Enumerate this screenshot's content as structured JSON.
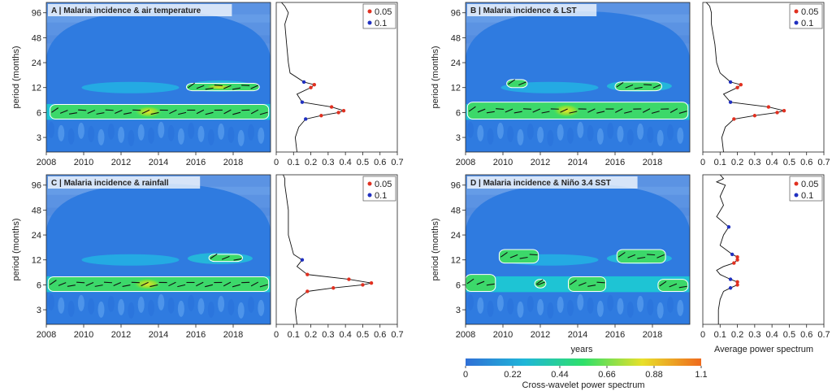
{
  "figure": {
    "colorbar": {
      "label": "Cross-wavelet power spectrum",
      "ticks": [
        "0",
        "0.22",
        "0.44",
        "0.66",
        "0.88",
        "1.1"
      ],
      "colors": [
        "#2f6fd6",
        "#1fb6d8",
        "#2ee06a",
        "#e8e02a",
        "#ef6a1e"
      ]
    },
    "bottom_labels": {
      "years": "years",
      "avg": "Average power spectrum"
    }
  },
  "chart_data": [
    {
      "type": "heatmap",
      "panel": "A",
      "title": "A | Malaria incidence & air temperature",
      "ylabel": "period (months)",
      "xticks": [
        "2008",
        "2010",
        "2012",
        "2014",
        "2016",
        "2018"
      ],
      "yticks": [
        "3",
        "6",
        "12",
        "24",
        "48",
        "96"
      ],
      "xlim": [
        2008,
        2020
      ],
      "ylim": [
        2,
        128
      ],
      "significant_regions": [
        {
          "x": [
            2008.2,
            2019.9
          ],
          "period": [
            5,
            7.5
          ]
        },
        {
          "x": [
            2015.5,
            2019.4
          ],
          "period": [
            11,
            13.5
          ]
        }
      ],
      "avg_power": {
        "xticks": [
          "0",
          "0.1",
          "0.2",
          "0.3",
          "0.4",
          "0.5",
          "0.6",
          "0.7"
        ],
        "xlim": [
          0,
          0.7
        ],
        "curve": [
          [
            2,
            0.12
          ],
          [
            3,
            0.11
          ],
          [
            4,
            0.13
          ],
          [
            5,
            0.17
          ],
          [
            5.5,
            0.26
          ],
          [
            6,
            0.36
          ],
          [
            6.3,
            0.39
          ],
          [
            7,
            0.32
          ],
          [
            8,
            0.15
          ],
          [
            10,
            0.12
          ],
          [
            12,
            0.2
          ],
          [
            13,
            0.22
          ],
          [
            14,
            0.16
          ],
          [
            18,
            0.08
          ],
          [
            24,
            0.07
          ],
          [
            40,
            0.06
          ],
          [
            70,
            0.05
          ],
          [
            96,
            0.07
          ],
          [
            115,
            0.05
          ],
          [
            128,
            0.03
          ]
        ],
        "legend": [
          "0.05",
          "0.1"
        ]
      }
    },
    {
      "type": "heatmap",
      "panel": "B",
      "title": "B | Malaria incidence & LST",
      "ylabel": "period (months)",
      "xticks": [
        "2008",
        "2010",
        "2012",
        "2014",
        "2016",
        "2018"
      ],
      "yticks": [
        "3",
        "6",
        "12",
        "24",
        "48",
        "96"
      ],
      "xlim": [
        2008,
        2020
      ],
      "ylim": [
        2,
        128
      ],
      "significant_regions": [
        {
          "x": [
            2008.1,
            2019.9
          ],
          "period": [
            5,
            8
          ]
        },
        {
          "x": [
            2010.2,
            2011.3
          ],
          "period": [
            12,
            15
          ]
        },
        {
          "x": [
            2016.0,
            2018.5
          ],
          "period": [
            11,
            14
          ]
        }
      ],
      "avg_power": {
        "xticks": [
          "0",
          "0.1",
          "0.2",
          "0.3",
          "0.4",
          "0.5",
          "0.6",
          "0.7"
        ],
        "xlim": [
          0,
          0.7
        ],
        "curve": [
          [
            2,
            0.12
          ],
          [
            3,
            0.11
          ],
          [
            4,
            0.13
          ],
          [
            5,
            0.18
          ],
          [
            5.5,
            0.3
          ],
          [
            6,
            0.43
          ],
          [
            6.3,
            0.47
          ],
          [
            7,
            0.38
          ],
          [
            8,
            0.16
          ],
          [
            10,
            0.12
          ],
          [
            12,
            0.2
          ],
          [
            13,
            0.22
          ],
          [
            14,
            0.16
          ],
          [
            18,
            0.1
          ],
          [
            24,
            0.08
          ],
          [
            40,
            0.07
          ],
          [
            70,
            0.05
          ],
          [
            96,
            0.05
          ],
          [
            115,
            0.04
          ],
          [
            128,
            0.02
          ]
        ],
        "legend": [
          "0.05",
          "0.1"
        ]
      }
    },
    {
      "type": "heatmap",
      "panel": "C",
      "title": "C | Malaria incidence & rainfall",
      "ylabel": "period (months)",
      "xticks": [
        "2008",
        "2010",
        "2012",
        "2014",
        "2016",
        "2018"
      ],
      "yticks": [
        "3",
        "6",
        "12",
        "24",
        "48",
        "96"
      ],
      "xlim": [
        2008,
        2020
      ],
      "ylim": [
        2,
        128
      ],
      "significant_regions": [
        {
          "x": [
            2008.1,
            2019.9
          ],
          "period": [
            5,
            7.5
          ]
        },
        {
          "x": [
            2016.7,
            2018.5
          ],
          "period": [
            11.5,
            14
          ]
        }
      ],
      "avg_power": {
        "xticks": [
          "0",
          "0.1",
          "0.2",
          "0.3",
          "0.4",
          "0.5",
          "0.6",
          "0.7"
        ],
        "xlim": [
          0,
          0.7
        ],
        "curve": [
          [
            2,
            0.12
          ],
          [
            3,
            0.11
          ],
          [
            4,
            0.12
          ],
          [
            5,
            0.18
          ],
          [
            5.5,
            0.33
          ],
          [
            6,
            0.5
          ],
          [
            6.3,
            0.55
          ],
          [
            7,
            0.42
          ],
          [
            8,
            0.18
          ],
          [
            10,
            0.12
          ],
          [
            12,
            0.15
          ],
          [
            14,
            0.1
          ],
          [
            24,
            0.07
          ],
          [
            48,
            0.07
          ],
          [
            96,
            0.05
          ],
          [
            115,
            0.05
          ],
          [
            128,
            0.04
          ]
        ],
        "legend": [
          "0.05",
          "0.1"
        ]
      }
    },
    {
      "type": "heatmap",
      "panel": "D",
      "title": "D | Malaria incidence & Niño 3.4 SST",
      "ylabel": "period (months)",
      "xticks": [
        "2008",
        "2010",
        "2012",
        "2014",
        "2016",
        "2018"
      ],
      "yticks": [
        "3",
        "6",
        "12",
        "24",
        "48",
        "96"
      ],
      "xlim": [
        2008,
        2020
      ],
      "ylim": [
        2,
        128
      ],
      "significant_regions": [
        {
          "x": [
            2008.0,
            2009.6
          ],
          "period": [
            5,
            8
          ]
        },
        {
          "x": [
            2009.8,
            2011.9
          ],
          "period": [
            11,
            16
          ]
        },
        {
          "x": [
            2011.7,
            2012.3
          ],
          "period": [
            5.5,
            7
          ]
        },
        {
          "x": [
            2013.5,
            2015.5
          ],
          "period": [
            5,
            7.5
          ]
        },
        {
          "x": [
            2016.1,
            2018.7
          ],
          "period": [
            11,
            16
          ]
        },
        {
          "x": [
            2018.3,
            2019.9
          ],
          "period": [
            5,
            7
          ]
        }
      ],
      "avg_power": {
        "xticks": [
          "0",
          "0.1",
          "0.2",
          "0.3",
          "0.4",
          "0.5",
          "0.6",
          "0.7"
        ],
        "xlim": [
          0,
          0.7
        ],
        "curve": [
          [
            2,
            0.09
          ],
          [
            3,
            0.09
          ],
          [
            4,
            0.1
          ],
          [
            5,
            0.12
          ],
          [
            5.5,
            0.16
          ],
          [
            6,
            0.2
          ],
          [
            6.5,
            0.2
          ],
          [
            7,
            0.16
          ],
          [
            8,
            0.1
          ],
          [
            9,
            0.08
          ],
          [
            10,
            0.12
          ],
          [
            11,
            0.18
          ],
          [
            12,
            0.2
          ],
          [
            13,
            0.2
          ],
          [
            14,
            0.17
          ],
          [
            18,
            0.1
          ],
          [
            24,
            0.12
          ],
          [
            30,
            0.15
          ],
          [
            40,
            0.08
          ],
          [
            55,
            0.12
          ],
          [
            70,
            0.1
          ],
          [
            96,
            0.13
          ],
          [
            105,
            0.08
          ],
          [
            115,
            0.12
          ],
          [
            128,
            0.1
          ]
        ],
        "legend": [
          "0.05",
          "0.1"
        ]
      }
    }
  ]
}
